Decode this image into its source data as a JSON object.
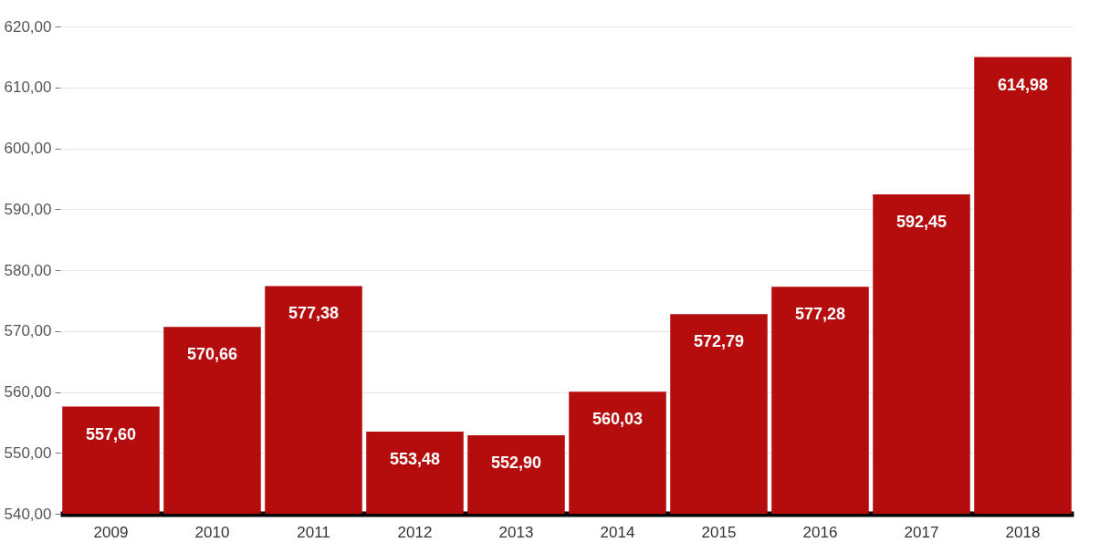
{
  "chart_data": {
    "type": "bar",
    "categories": [
      "2009",
      "2010",
      "2011",
      "2012",
      "2013",
      "2014",
      "2015",
      "2016",
      "2017",
      "2018"
    ],
    "values": [
      557.6,
      570.66,
      577.38,
      553.48,
      552.9,
      560.03,
      572.79,
      577.28,
      592.45,
      614.98
    ],
    "value_labels": [
      "557,60",
      "570,66",
      "577,38",
      "553,48",
      "552,90",
      "560,03",
      "572,79",
      "577,28",
      "592,45",
      "614,98"
    ],
    "color": "#b50c0e",
    "ylim": [
      540,
      620
    ],
    "yticks": [
      {
        "value": 540,
        "label": "540,00"
      },
      {
        "value": 550,
        "label": "550,00"
      },
      {
        "value": 560,
        "label": "560,00"
      },
      {
        "value": 570,
        "label": "570,00"
      },
      {
        "value": 580,
        "label": "580,00"
      },
      {
        "value": 590,
        "label": "590,00"
      },
      {
        "value": 600,
        "label": "600,00"
      },
      {
        "value": 610,
        "label": "610,00"
      },
      {
        "value": 620,
        "label": "620,00"
      }
    ],
    "grid": "y"
  }
}
